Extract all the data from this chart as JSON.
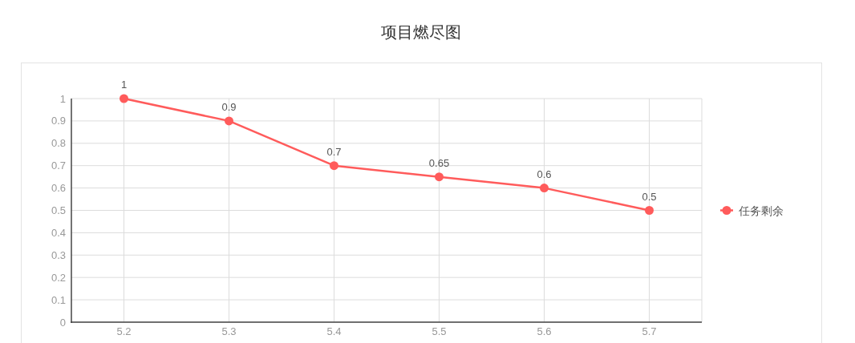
{
  "chart_data": {
    "type": "line",
    "title": "项目燃尽图",
    "categories": [
      "5.2",
      "5.3",
      "5.4",
      "5.5",
      "5.6",
      "5.7"
    ],
    "series": [
      {
        "name": "任务剩余",
        "color": "#ff5b5b",
        "values": [
          1,
          0.9,
          0.7,
          0.65,
          0.6,
          0.5
        ]
      }
    ],
    "ylim": [
      0,
      1
    ],
    "yticks": [
      0,
      0.1,
      0.2,
      0.3,
      0.4,
      0.5,
      0.6,
      0.7,
      0.8,
      0.9,
      1
    ],
    "grid": true,
    "legend": "right",
    "marker": "circle",
    "line_style": "solid",
    "data_labels": true
  }
}
